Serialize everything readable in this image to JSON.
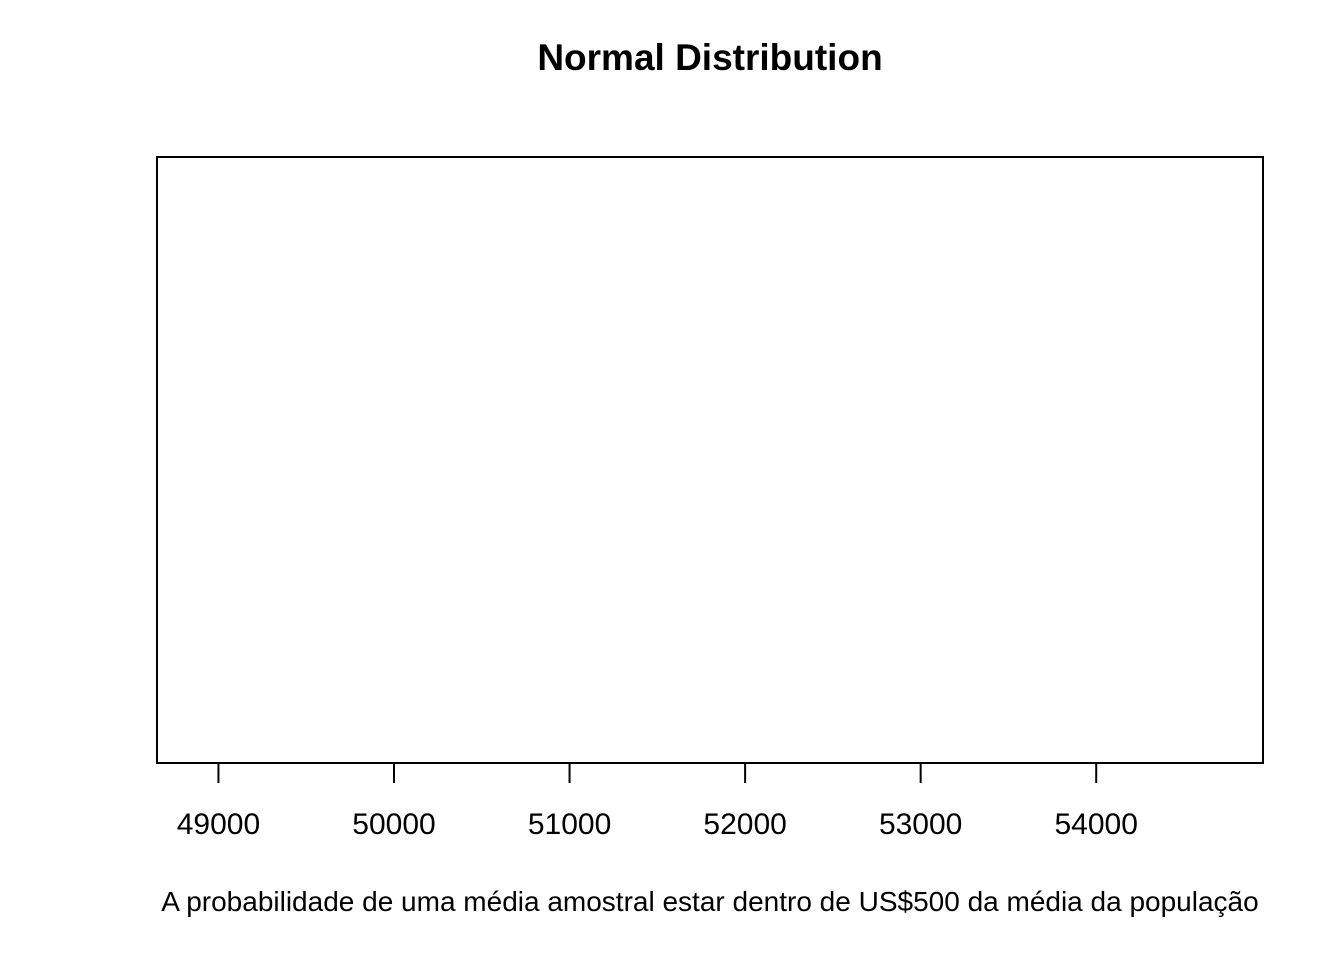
{
  "chart_data": {
    "type": "line",
    "title": "Normal Distribution",
    "xlabel": "A probabilidade de uma média amostral estar dentro de US$500 da média da população",
    "ylabel": "",
    "xlim": [
      48650,
      54950
    ],
    "x_ticks": [
      49000,
      50000,
      51000,
      52000,
      53000,
      54000
    ],
    "x_tick_labels": [
      "49000",
      "50000",
      "51000",
      "52000",
      "53000",
      "54000"
    ],
    "series": [],
    "grid": false,
    "legend": "none",
    "y_axis_shown": false
  }
}
